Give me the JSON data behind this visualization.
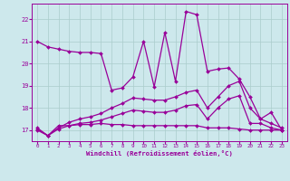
{
  "background_color": "#cde8ec",
  "grid_color": "#aacccc",
  "line_color": "#990099",
  "xlabel": "Windchill (Refroidissement éolien,°C)",
  "xlim": [
    -0.5,
    23.5
  ],
  "ylim": [
    16.5,
    22.7
  ],
  "yticks": [
    17,
    18,
    19,
    20,
    21,
    22
  ],
  "xticks": [
    0,
    1,
    2,
    3,
    4,
    5,
    6,
    7,
    8,
    9,
    10,
    11,
    12,
    13,
    14,
    15,
    16,
    17,
    18,
    19,
    20,
    21,
    22,
    23
  ],
  "s1_x": [
    0,
    1,
    2,
    3,
    4,
    5,
    6,
    7,
    8,
    9,
    10,
    11,
    12,
    13,
    14,
    15,
    16,
    17,
    18,
    19,
    20,
    21,
    22,
    23
  ],
  "s1_y": [
    21.0,
    20.75,
    20.65,
    20.55,
    20.5,
    20.5,
    20.45,
    18.8,
    18.9,
    19.4,
    21.0,
    18.95,
    21.4,
    19.2,
    22.35,
    22.2,
    19.65,
    19.75,
    19.8,
    19.3,
    18.5,
    17.5,
    17.8,
    17.0
  ],
  "s2_x": [
    0,
    1,
    2,
    3,
    4,
    5,
    6,
    7,
    8,
    9,
    10,
    11,
    12,
    13,
    14,
    15,
    16,
    17,
    18,
    19,
    20,
    21,
    22,
    23
  ],
  "s2_y": [
    17.0,
    16.75,
    17.2,
    17.2,
    17.25,
    17.25,
    17.3,
    17.25,
    17.25,
    17.2,
    17.2,
    17.2,
    17.2,
    17.2,
    17.2,
    17.2,
    17.1,
    17.1,
    17.1,
    17.05,
    17.0,
    17.0,
    17.0,
    17.0
  ],
  "s3_x": [
    0,
    1,
    2,
    3,
    4,
    5,
    6,
    7,
    8,
    9,
    10,
    11,
    12,
    13,
    14,
    15,
    16,
    17,
    18,
    19,
    20,
    21,
    22,
    23
  ],
  "s3_y": [
    17.05,
    16.75,
    17.05,
    17.2,
    17.3,
    17.35,
    17.45,
    17.6,
    17.75,
    17.9,
    17.85,
    17.8,
    17.8,
    17.9,
    18.1,
    18.15,
    17.5,
    18.0,
    18.4,
    18.55,
    17.3,
    17.3,
    17.1,
    17.0
  ],
  "s4_x": [
    0,
    1,
    2,
    3,
    4,
    5,
    6,
    7,
    8,
    9,
    10,
    11,
    12,
    13,
    14,
    15,
    16,
    17,
    18,
    19,
    20,
    21,
    22,
    23
  ],
  "s4_y": [
    17.1,
    16.75,
    17.1,
    17.35,
    17.5,
    17.6,
    17.75,
    18.0,
    18.2,
    18.45,
    18.4,
    18.35,
    18.35,
    18.5,
    18.7,
    18.8,
    18.0,
    18.5,
    19.0,
    19.2,
    18.0,
    17.5,
    17.3,
    17.1
  ]
}
